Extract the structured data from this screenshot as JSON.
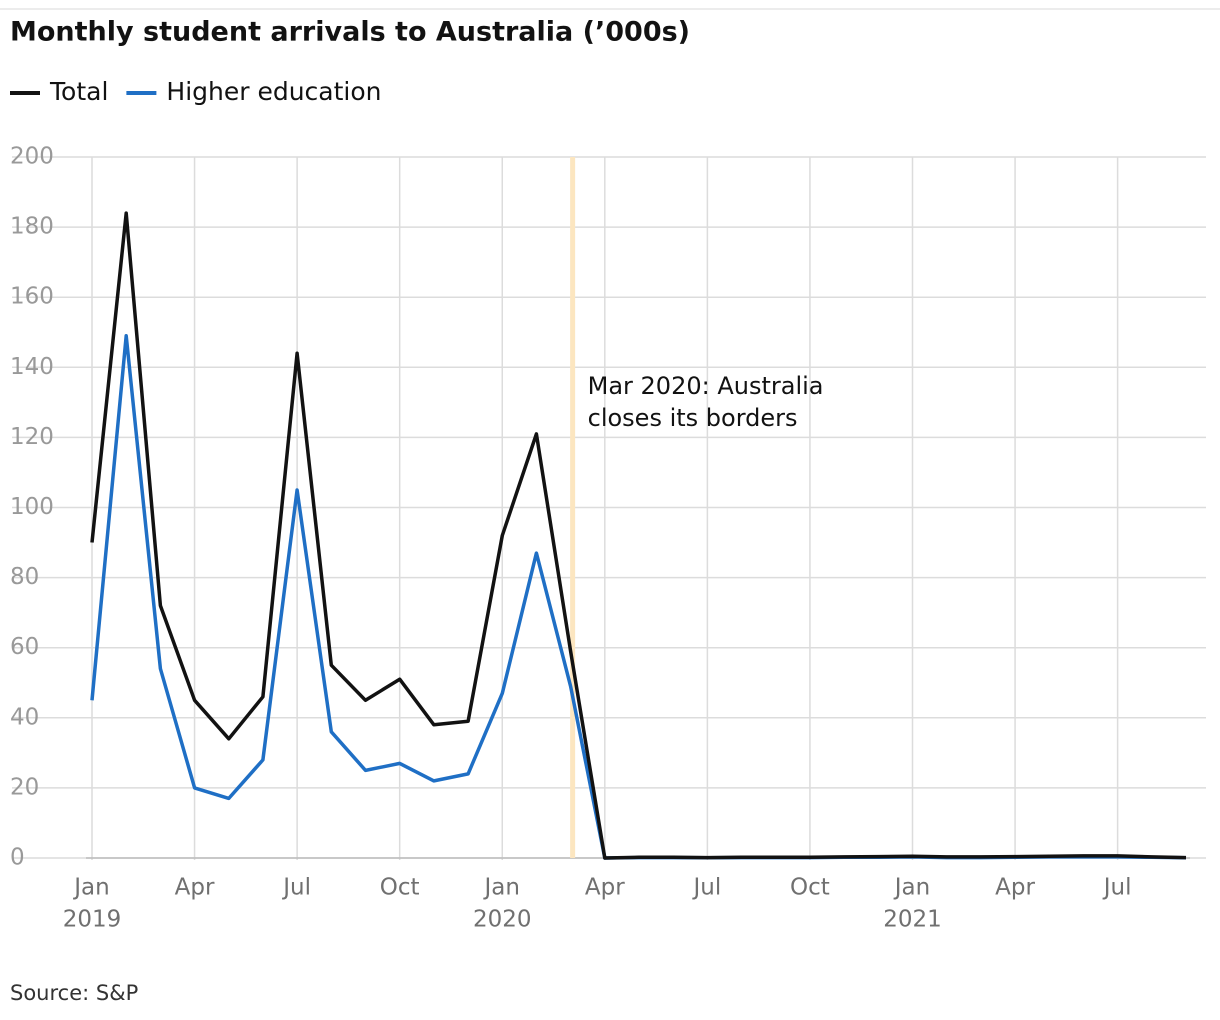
{
  "chart_data": {
    "type": "line",
    "title": "Monthly student arrivals to Australia (’000s)",
    "source": "Source: S&P",
    "annotation": [
      "Mar 2020: Australia",
      "closes its borders"
    ],
    "categories": [
      "Jan",
      null,
      null,
      "Apr",
      null,
      null,
      "Jul",
      null,
      null,
      "Oct",
      null,
      null,
      "Jan",
      null,
      null,
      "Apr",
      null,
      null,
      "Jul",
      null,
      null,
      "Oct",
      null,
      null,
      "Jan",
      null,
      null,
      "Apr",
      null,
      null,
      "Jul",
      null,
      null
    ],
    "years": [
      "2019",
      null,
      null,
      null,
      null,
      null,
      null,
      null,
      null,
      null,
      null,
      null,
      "2020",
      null,
      null,
      null,
      null,
      null,
      null,
      null,
      null,
      null,
      null,
      null,
      "2021",
      null,
      null,
      null,
      null,
      null,
      null,
      null,
      null
    ],
    "series": [
      {
        "name": "Total",
        "color": "#121212",
        "values": [
          90,
          184,
          72,
          45,
          34,
          46,
          144,
          55,
          45,
          51,
          38,
          39,
          92,
          121,
          59,
          0,
          0.2,
          0.2,
          0.1,
          0.2,
          0.2,
          0.2,
          0.3,
          0.4,
          0.5,
          0.3,
          0.3,
          0.4,
          0.5,
          0.6,
          0.6,
          0.3,
          0.1
        ]
      },
      {
        "name": "Higher education",
        "color": "#1f6fc5",
        "values": [
          45,
          149,
          54,
          20,
          17,
          28,
          105,
          36,
          25,
          27,
          22,
          24,
          47,
          87,
          49,
          0,
          0.1,
          0.1,
          0.05,
          0.1,
          0.1,
          0.1,
          0.2,
          0.2,
          0.3,
          0.1,
          0.1,
          0.2,
          0.3,
          0.3,
          0.3,
          0.2,
          0.05
        ]
      }
    ],
    "ylim": [
      0,
      200
    ],
    "yticks": [
      0,
      20,
      40,
      60,
      80,
      100,
      120,
      140,
      160,
      180,
      200
    ],
    "grid": true
  }
}
